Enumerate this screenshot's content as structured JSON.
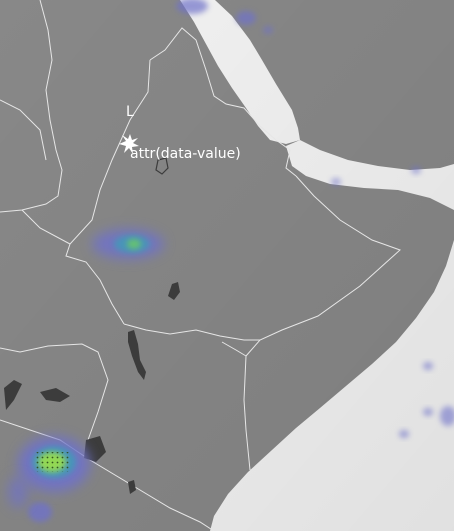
{
  "map": {
    "label_marker": "L",
    "value_label": "attr(data-value)",
    "colors": {
      "land": "#8f8f8f",
      "land_light": "#9a9a9a",
      "sea": "#ffffff",
      "border": "#e6e6e6",
      "lake": "#3c3c3c",
      "heat_outer": "#6f72c9",
      "heat_mid": "#3f9bb8",
      "heat_core": "#6fd25a",
      "heat_hot": "#9be04a"
    },
    "icons": {
      "location_marker": "sparkle-star-icon"
    }
  }
}
